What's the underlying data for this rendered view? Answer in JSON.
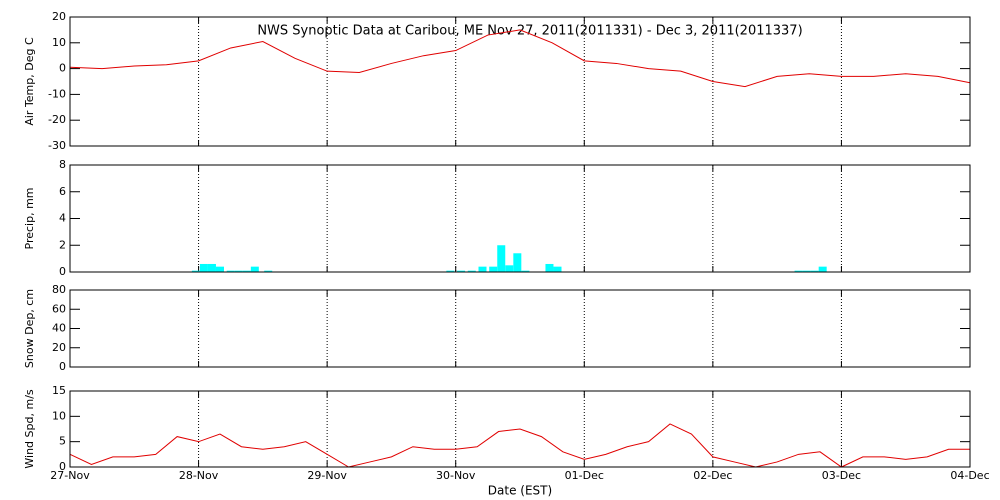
{
  "chart_data": [
    {
      "type": "line",
      "title": "NWS Synoptic Data at Caribou, ME   Nov 27, 2011(2011331) - Dec  3, 2011(2011337)",
      "ylabel": "Air Temp, Deg C",
      "ylim": [
        -30,
        20
      ],
      "yticks": [
        -30,
        -20,
        -10,
        0,
        10,
        20
      ],
      "series": [
        {
          "color": "#e00000",
          "x": [
            0,
            6,
            12,
            18,
            24,
            30,
            36,
            42,
            48,
            54,
            60,
            66,
            72,
            78,
            84,
            90,
            96,
            102,
            108,
            114,
            120,
            126,
            132,
            138,
            144,
            150,
            156,
            162,
            168
          ],
          "values": [
            0.5,
            0,
            1,
            1.5,
            3,
            8,
            10.5,
            4,
            -1,
            -1.5,
            2,
            5,
            7,
            13,
            15,
            10,
            3,
            2,
            0,
            -1,
            -5,
            -7,
            -3,
            -2,
            -3,
            -3,
            -2,
            -3,
            -5.5
          ]
        }
      ]
    },
    {
      "type": "bar",
      "ylabel": "Precip, mm",
      "ylim": [
        0,
        8
      ],
      "yticks": [
        0,
        2,
        4,
        6,
        8
      ],
      "series": [
        {
          "color": "#00ffff",
          "x": [
            23.5,
            25,
            26.5,
            28,
            30,
            31.5,
            33,
            34.5,
            37,
            71,
            73,
            75,
            77,
            79,
            80.5,
            82,
            83.5,
            85,
            89.5,
            91,
            136,
            137.5,
            139,
            140.5
          ],
          "values": [
            0.1,
            0.6,
            0.6,
            0.4,
            0.1,
            0.1,
            0.1,
            0.4,
            0.1,
            0.1,
            0.1,
            0.1,
            0.4,
            0.4,
            2.0,
            0.5,
            1.4,
            0.1,
            0.6,
            0.4,
            0.1,
            0.1,
            0.1,
            0.4
          ]
        }
      ]
    },
    {
      "type": "line",
      "ylabel": "Snow Dep, cm",
      "ylim": [
        0,
        80
      ],
      "yticks": [
        0,
        20,
        40,
        60,
        80
      ]
    },
    {
      "type": "line",
      "ylabel": "Wind Spd, m/s",
      "xlabel": "Date (EST)",
      "ylim": [
        0,
        15
      ],
      "yticks": [
        0,
        5,
        10,
        15
      ],
      "xlim": [
        0,
        168
      ],
      "xticks": [
        {
          "value": 0,
          "label": "27-Nov"
        },
        {
          "value": 24,
          "label": "28-Nov"
        },
        {
          "value": 48,
          "label": "29-Nov"
        },
        {
          "value": 72,
          "label": "30-Nov"
        },
        {
          "value": 96,
          "label": "01-Dec"
        },
        {
          "value": 120,
          "label": "02-Dec"
        },
        {
          "value": 144,
          "label": "03-Dec"
        },
        {
          "value": 168,
          "label": "04-Dec"
        }
      ],
      "series": [
        {
          "color": "#e00000",
          "x": [
            0,
            4,
            8,
            12,
            16,
            20,
            24,
            28,
            32,
            36,
            40,
            44,
            48,
            52,
            56,
            60,
            64,
            68,
            72,
            76,
            80,
            84,
            88,
            92,
            96,
            100,
            104,
            108,
            112,
            116,
            120,
            124,
            128,
            132,
            136,
            140,
            144,
            148,
            152,
            156,
            160,
            164,
            168
          ],
          "values": [
            2.5,
            0.5,
            2,
            2,
            2.5,
            6,
            5,
            6.5,
            4,
            3.5,
            4,
            5,
            2.5,
            0,
            1,
            2,
            4,
            3.5,
            3.5,
            4,
            7,
            7.5,
            6,
            3,
            1.5,
            2.5,
            4,
            5,
            8.5,
            6.5,
            2,
            1,
            0,
            1,
            2.5,
            3,
            0,
            2,
            2,
            1.5,
            2,
            3.5,
            3.5
          ]
        }
      ]
    }
  ]
}
